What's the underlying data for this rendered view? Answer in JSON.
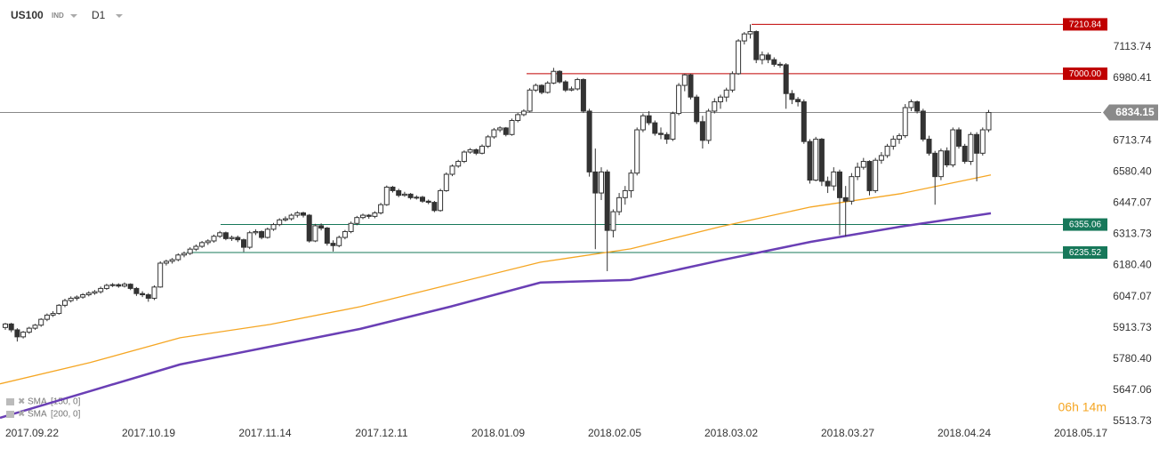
{
  "chart_data": {
    "type": "candlestick",
    "symbol": "US100",
    "market": "IND",
    "timeframe": "D1",
    "timer": "06h 14m",
    "up_color": "#ffffff",
    "down_color": "#333333",
    "ylim": [
      5445,
      7315
    ],
    "yticks": [
      7113.74,
      6980.41,
      6713.74,
      {
        "value": 6580.4,
        "label": "6580.40"
      },
      6447.07,
      6313.73,
      {
        "value": 6180.4,
        "label": "6180.40"
      },
      6047.07,
      5913.73,
      {
        "value": 5780.4,
        "label": "5780.40"
      },
      5647.06,
      5513.73
    ],
    "x_labels": [
      "2017.09.22",
      "2017.10.19",
      "2017.11.14",
      "2017.12.11",
      "2018.01.09",
      "2018.02.05",
      "2018.03.02",
      "2018.03.27",
      "2018.04.24",
      "2018.05.17"
    ],
    "current_price": 6834.15,
    "levels": [
      {
        "value": 7210.84,
        "color": "#c00000"
      },
      {
        "value": 7000,
        "label": "7000.00",
        "color": "#c00000"
      },
      {
        "value": 6355.06,
        "color": "#17785a"
      },
      {
        "value": 6235.52,
        "color": "#17785a"
      }
    ],
    "indicators": [
      {
        "name": "SMA",
        "params": "[150, 0]",
        "color": "#f5a623",
        "values": [
          5674,
          5765,
          5871,
          5928,
          6004,
          6099,
          6194,
          6251,
          6346,
          6430,
          6487,
          6567
        ]
      },
      {
        "name": "SMA",
        "params": "[200, 0]",
        "color": "#6a3fb5",
        "values": [
          5529,
          5643,
          5757,
          5833,
          5909,
          6004,
          6107,
          6118,
          6202,
          6281,
          6346,
          6403
        ]
      }
    ],
    "candles": [
      [
        5915,
        5935,
        5905,
        5930
      ],
      [
        5930,
        5935,
        5895,
        5905
      ],
      [
        5905,
        5912,
        5855,
        5875
      ],
      [
        5875,
        5900,
        5868,
        5895
      ],
      [
        5895,
        5918,
        5888,
        5912
      ],
      [
        5912,
        5930,
        5905,
        5925
      ],
      [
        5925,
        5955,
        5918,
        5950
      ],
      [
        5950,
        5975,
        5942,
        5968
      ],
      [
        5968,
        5985,
        5960,
        5975
      ],
      [
        5975,
        6015,
        5970,
        6010
      ],
      [
        6010,
        6038,
        6002,
        6030
      ],
      [
        6030,
        6048,
        6022,
        6040
      ],
      [
        6040,
        6052,
        6030,
        6045
      ],
      [
        6045,
        6062,
        6038,
        6055
      ],
      [
        6055,
        6070,
        6048,
        6062
      ],
      [
        6062,
        6075,
        6055,
        6068
      ],
      [
        6068,
        6090,
        6060,
        6082
      ],
      [
        6082,
        6102,
        6076,
        6095
      ],
      [
        6095,
        6105,
        6088,
        6098
      ],
      [
        6098,
        6104,
        6085,
        6092
      ],
      [
        6092,
        6108,
        6086,
        6100
      ],
      [
        6100,
        6104,
        6075,
        6082
      ],
      [
        6082,
        6088,
        6050,
        6060
      ],
      [
        6060,
        6070,
        6045,
        6055
      ],
      [
        6055,
        6062,
        6025,
        6040
      ],
      [
        6040,
        6095,
        6032,
        6088
      ],
      [
        6088,
        6198,
        6085,
        6190
      ],
      [
        6190,
        6205,
        6180,
        6198
      ],
      [
        6198,
        6212,
        6188,
        6205
      ],
      [
        6205,
        6232,
        6198,
        6225
      ],
      [
        6225,
        6240,
        6215,
        6232
      ],
      [
        6232,
        6258,
        6225,
        6250
      ],
      [
        6250,
        6270,
        6242,
        6262
      ],
      [
        6262,
        6285,
        6255,
        6278
      ],
      [
        6278,
        6292,
        6268,
        6285
      ],
      [
        6285,
        6312,
        6278,
        6305
      ],
      [
        6305,
        6328,
        6298,
        6320
      ],
      [
        6320,
        6325,
        6288,
        6295
      ],
      [
        6295,
        6308,
        6285,
        6300
      ],
      [
        6300,
        6308,
        6280,
        6290
      ],
      [
        6290,
        6295,
        6238,
        6258
      ],
      [
        6258,
        6328,
        6250,
        6320
      ],
      [
        6320,
        6335,
        6310,
        6325
      ],
      [
        6325,
        6330,
        6292,
        6300
      ],
      [
        6300,
        6342,
        6295,
        6335
      ],
      [
        6335,
        6362,
        6328,
        6355
      ],
      [
        6355,
        6382,
        6348,
        6375
      ],
      [
        6375,
        6390,
        6368,
        6380
      ],
      [
        6380,
        6402,
        6372,
        6395
      ],
      [
        6395,
        6412,
        6385,
        6405
      ],
      [
        6405,
        6410,
        6385,
        6395
      ],
      [
        6395,
        6400,
        6278,
        6285
      ],
      [
        6285,
        6358,
        6280,
        6350
      ],
      [
        6350,
        6360,
        6330,
        6340
      ],
      [
        6340,
        6345,
        6265,
        6275
      ],
      [
        6275,
        6288,
        6240,
        6265
      ],
      [
        6265,
        6308,
        6258,
        6300
      ],
      [
        6300,
        6332,
        6292,
        6325
      ],
      [
        6325,
        6368,
        6318,
        6360
      ],
      [
        6360,
        6392,
        6352,
        6385
      ],
      [
        6385,
        6402,
        6378,
        6395
      ],
      [
        6395,
        6400,
        6380,
        6390
      ],
      [
        6390,
        6412,
        6382,
        6405
      ],
      [
        6405,
        6448,
        6398,
        6440
      ],
      [
        6440,
        6522,
        6435,
        6515
      ],
      [
        6515,
        6520,
        6492,
        6500
      ],
      [
        6500,
        6508,
        6472,
        6480
      ],
      [
        6480,
        6495,
        6474,
        6485
      ],
      [
        6485,
        6490,
        6462,
        6470
      ],
      [
        6470,
        6480,
        6462,
        6472
      ],
      [
        6472,
        6478,
        6448,
        6455
      ],
      [
        6455,
        6462,
        6442,
        6450
      ],
      [
        6450,
        6456,
        6408,
        6415
      ],
      [
        6415,
        6508,
        6410,
        6500
      ],
      [
        6500,
        6578,
        6495,
        6570
      ],
      [
        6570,
        6612,
        6562,
        6605
      ],
      [
        6605,
        6632,
        6598,
        6625
      ],
      [
        6625,
        6672,
        6618,
        6665
      ],
      [
        6665,
        6682,
        6658,
        6675
      ],
      [
        6675,
        6680,
        6652,
        6660
      ],
      [
        6660,
        6698,
        6655,
        6690
      ],
      [
        6690,
        6738,
        6682,
        6730
      ],
      [
        6730,
        6768,
        6722,
        6760
      ],
      [
        6760,
        6775,
        6750,
        6768
      ],
      [
        6768,
        6772,
        6732,
        6740
      ],
      [
        6740,
        6808,
        6735,
        6800
      ],
      [
        6800,
        6832,
        6792,
        6825
      ],
      [
        6825,
        6848,
        6818,
        6840
      ],
      [
        6840,
        6938,
        6835,
        6930
      ],
      [
        6930,
        6958,
        6922,
        6950
      ],
      [
        6950,
        6955,
        6912,
        6920
      ],
      [
        6920,
        6968,
        6915,
        6960
      ],
      [
        6960,
        7025,
        6955,
        7010
      ],
      [
        7010,
        7015,
        6958,
        6965
      ],
      [
        6965,
        6972,
        6922,
        6930
      ],
      [
        6930,
        6945,
        6925,
        6935
      ],
      [
        6935,
        6982,
        6928,
        6975
      ],
      [
        6975,
        6980,
        6832,
        6840
      ],
      [
        6840,
        6850,
        6560,
        6580
      ],
      [
        6580,
        6680,
        6250,
        6490
      ],
      [
        6490,
        6600,
        6460,
        6580
      ],
      [
        6580,
        6590,
        6156,
        6330
      ],
      [
        6330,
        6420,
        6300,
        6410
      ],
      [
        6410,
        6490,
        6395,
        6470
      ],
      [
        6470,
        6520,
        6440,
        6500
      ],
      [
        6500,
        6590,
        6470,
        6575
      ],
      [
        6575,
        6770,
        6565,
        6760
      ],
      [
        6760,
        6830,
        6750,
        6820
      ],
      [
        6820,
        6840,
        6780,
        6790
      ],
      [
        6790,
        6800,
        6735,
        6745
      ],
      [
        6745,
        6770,
        6720,
        6740
      ],
      [
        6740,
        6750,
        6700,
        6720
      ],
      [
        6720,
        6838,
        6712,
        6830
      ],
      [
        6830,
        6960,
        6822,
        6950
      ],
      [
        6950,
        7000,
        6925,
        6995
      ],
      [
        6995,
        7000,
        6890,
        6900
      ],
      [
        6900,
        6910,
        6785,
        6795
      ],
      [
        6795,
        6820,
        6680,
        6715
      ],
      [
        6715,
        6850,
        6700,
        6840
      ],
      [
        6840,
        6895,
        6830,
        6880
      ],
      [
        6880,
        6910,
        6850,
        6900
      ],
      [
        6900,
        6940,
        6880,
        6930
      ],
      [
        6930,
        7010,
        6920,
        7000
      ],
      [
        7000,
        7148,
        6995,
        7140
      ],
      [
        7140,
        7178,
        7125,
        7170
      ],
      [
        7170,
        7210.84,
        7150,
        7180
      ],
      [
        7180,
        7185,
        7045,
        7060
      ],
      [
        7060,
        7095,
        7040,
        7080
      ],
      [
        7080,
        7090,
        7045,
        7060
      ],
      [
        7060,
        7070,
        7030,
        7040
      ],
      [
        7040,
        7050,
        7025,
        7038
      ],
      [
        7038,
        7045,
        6850,
        6915
      ],
      [
        6915,
        6930,
        6870,
        6890
      ],
      [
        6890,
        6900,
        6860,
        6880
      ],
      [
        6880,
        6890,
        6700,
        6710
      ],
      [
        6710,
        6720,
        6530,
        6545
      ],
      [
        6545,
        6730,
        6540,
        6720
      ],
      [
        6720,
        6725,
        6520,
        6540
      ],
      [
        6540,
        6560,
        6490,
        6520
      ],
      [
        6520,
        6600,
        6500,
        6580
      ],
      [
        6580,
        6590,
        6310,
        6470
      ],
      [
        6470,
        6520,
        6305,
        6455
      ],
      [
        6455,
        6575,
        6440,
        6560
      ],
      [
        6560,
        6620,
        6545,
        6600
      ],
      [
        6600,
        6640,
        6590,
        6625
      ],
      [
        6625,
        6630,
        6480,
        6500
      ],
      [
        6500,
        6640,
        6490,
        6630
      ],
      [
        6630,
        6665,
        6615,
        6650
      ],
      [
        6650,
        6700,
        6640,
        6690
      ],
      [
        6690,
        6735,
        6675,
        6720
      ],
      [
        6720,
        6745,
        6700,
        6735
      ],
      [
        6735,
        6870,
        6725,
        6855
      ],
      [
        6855,
        6890,
        6840,
        6880
      ],
      [
        6880,
        6885,
        6830,
        6840
      ],
      [
        6840,
        6850,
        6710,
        6720
      ],
      [
        6720,
        6735,
        6650,
        6660
      ],
      [
        6660,
        6670,
        6440,
        6560
      ],
      [
        6560,
        6680,
        6545,
        6670
      ],
      [
        6670,
        6685,
        6600,
        6610
      ],
      [
        6610,
        6770,
        6600,
        6760
      ],
      [
        6760,
        6770,
        6680,
        6690
      ],
      [
        6690,
        6700,
        6615,
        6625
      ],
      [
        6625,
        6750,
        6610,
        6740
      ],
      [
        6740,
        6750,
        6540,
        6660
      ],
      [
        6660,
        6770,
        6650,
        6760
      ],
      [
        6760,
        6845,
        6750,
        6834.15
      ]
    ]
  }
}
